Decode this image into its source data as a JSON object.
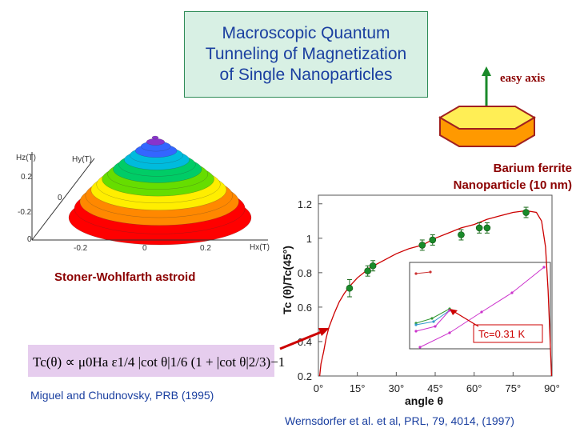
{
  "title_lines": [
    "Macroscopic Quantum",
    "Tunneling of Magnetization",
    "of Single Nanoparticles"
  ],
  "easy_axis_label": "easy axis",
  "particle_label_lines": [
    "Barium ferrite",
    "Nanoparticle  (10 nm)"
  ],
  "astroid": {
    "label": "Stoner-Wohlfarth astroid",
    "hz_label": "Hz(T)",
    "hy_label": "Hy(T)",
    "hx_label": "Hx(T)",
    "z_ticks": [
      "0.2",
      "0",
      "-0.2"
    ],
    "x_ticks": [
      "-0.2",
      "0",
      "0.2"
    ],
    "colors": [
      "#ff0000",
      "#ff8800",
      "#ffee00",
      "#66dd00",
      "#00cc66",
      "#00bbdd",
      "#3366ff",
      "#8833cc"
    ]
  },
  "formula": "Tc(θ) ∝ μ0Ha ε1/4 |cot θ|1/6 (1 + |cot θ|2/3)−1",
  "citation_left": "Miguel and Chudnovsky, PRB (1995)",
  "citation_right": "Wernsdorfer et al. et al, PRL, 79, 4014, (1997)",
  "chart_data": {
    "type": "scatter",
    "xlabel": "angle  θ",
    "ylabel": "Tc (θ)/Tc(45°)",
    "xlim": [
      0,
      90
    ],
    "ylim": [
      0.2,
      1.25
    ],
    "x_ticks": [
      "0°",
      "15°",
      "30°",
      "45°",
      "60°",
      "75°",
      "90°"
    ],
    "y_ticks": [
      "0.2",
      "0.4",
      "0.6",
      "0.8",
      "1",
      "1.2"
    ],
    "series": [
      {
        "points": [
          {
            "x": 12,
            "y": 0.71,
            "err": 0.05
          },
          {
            "x": 19,
            "y": 0.81,
            "err": 0.03
          },
          {
            "x": 21,
            "y": 0.84,
            "err": 0.03
          },
          {
            "x": 40,
            "y": 0.96,
            "err": 0.03
          },
          {
            "x": 44,
            "y": 0.99,
            "err": 0.03
          },
          {
            "x": 55,
            "y": 1.02,
            "err": 0.03
          },
          {
            "x": 62,
            "y": 1.06,
            "err": 0.03
          },
          {
            "x": 65,
            "y": 1.06,
            "err": 0.03
          },
          {
            "x": 80,
            "y": 1.15,
            "err": 0.03
          }
        ]
      }
    ],
    "theory_curve": [
      [
        0.5,
        0.2
      ],
      [
        1,
        0.27
      ],
      [
        2,
        0.34
      ],
      [
        3,
        0.42
      ],
      [
        4,
        0.48
      ],
      [
        6,
        0.56
      ],
      [
        8,
        0.63
      ],
      [
        10,
        0.68
      ],
      [
        12,
        0.72
      ],
      [
        15,
        0.77
      ],
      [
        20,
        0.83
      ],
      [
        25,
        0.87
      ],
      [
        30,
        0.91
      ],
      [
        35,
        0.94
      ],
      [
        40,
        0.96
      ],
      [
        45,
        1.0
      ],
      [
        50,
        1.03
      ],
      [
        55,
        1.06
      ],
      [
        60,
        1.08
      ],
      [
        65,
        1.11
      ],
      [
        70,
        1.13
      ],
      [
        75,
        1.15
      ],
      [
        80,
        1.16
      ],
      [
        84,
        1.15
      ],
      [
        86,
        1.1
      ],
      [
        87.5,
        0.95
      ],
      [
        88.5,
        0.7
      ],
      [
        89.3,
        0.4
      ],
      [
        89.8,
        0.2
      ]
    ],
    "annotation": "Tc=0.31 K",
    "inset_colors": [
      "#cc3333",
      "#339933",
      "#3399cc",
      "#cc33cc"
    ]
  }
}
